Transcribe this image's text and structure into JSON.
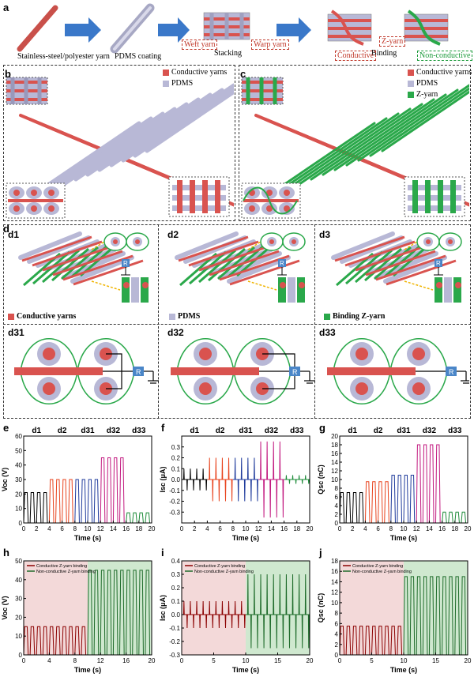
{
  "panel_a": {
    "label": "a",
    "steps": [
      "Stainless-steel/polyester yarn",
      "PDMS coating",
      "Stacking",
      "Binding"
    ],
    "weft_label": "Weft yarn",
    "warp_label": "Warp yarn",
    "z_yarn_label": "Z-yarn",
    "conductive_label": "Conductive",
    "nonconductive_label": "Non-conductive"
  },
  "panel_b": {
    "label": "b",
    "legend": [
      "Conductive yarns",
      "PDMS"
    ]
  },
  "panel_c": {
    "label": "c",
    "legend": [
      "Conductive yarns",
      "PDMS",
      "Z-yarn"
    ]
  },
  "panel_d": {
    "label": "d",
    "subpanels": [
      "d1",
      "d2",
      "d3",
      "d31",
      "d32",
      "d33"
    ],
    "legend": [
      "Conductive yarns",
      "PDMS",
      "Binding Z-yarn"
    ],
    "resistor": "R"
  },
  "colors": {
    "conductive": "#d9534f",
    "pdms": "#b8b8d6",
    "zyarn": "#2aa84a",
    "resistor": "#4a86c8"
  },
  "chart_data": [
    {
      "id": "e",
      "type": "line",
      "ylabel": "Voc (V)",
      "xlabel": "Time (s)",
      "xlim": [
        0,
        20
      ],
      "ylim": [
        0,
        60
      ],
      "xticks": [
        0,
        2,
        4,
        6,
        8,
        10,
        12,
        14,
        16,
        18,
        20
      ],
      "yticks": [
        0,
        10,
        20,
        30,
        40,
        50,
        60
      ],
      "segment_labels": [
        "d1",
        "d2",
        "d31",
        "d32",
        "d33"
      ],
      "series": [
        {
          "segment": "d1",
          "x": [
            0,
            4
          ],
          "peak": 21,
          "base": 0,
          "pulses": 4,
          "color": "#000000"
        },
        {
          "segment": "d2",
          "x": [
            4,
            8
          ],
          "peak": 30,
          "base": 0,
          "pulses": 4,
          "color": "#e8431d"
        },
        {
          "segment": "d31",
          "x": [
            8,
            12
          ],
          "peak": 30,
          "base": 0,
          "pulses": 4,
          "color": "#1f3b9c"
        },
        {
          "segment": "d32",
          "x": [
            12,
            16
          ],
          "peak": 45,
          "base": 0,
          "pulses": 4,
          "color": "#c2187f"
        },
        {
          "segment": "d33",
          "x": [
            16,
            20
          ],
          "peak": 7,
          "base": 0,
          "pulses": 4,
          "color": "#1e8c3a"
        }
      ]
    },
    {
      "id": "f",
      "type": "line",
      "ylabel": "Isc (μA)",
      "xlabel": "Time (s)",
      "xlim": [
        0,
        20
      ],
      "ylim": [
        -0.4,
        0.4
      ],
      "xticks": [
        0,
        2,
        4,
        6,
        8,
        10,
        12,
        14,
        16,
        18,
        20
      ],
      "yticks": [
        -0.3,
        -0.2,
        -0.1,
        0.0,
        0.1,
        0.2,
        0.3
      ],
      "segment_labels": [
        "d1",
        "d2",
        "d31",
        "d32",
        "d33"
      ],
      "series": [
        {
          "segment": "d1",
          "x": [
            0,
            4
          ],
          "peak": 0.1,
          "neg": -0.1,
          "pulses": 4,
          "color": "#000000"
        },
        {
          "segment": "d2",
          "x": [
            4,
            8
          ],
          "peak": 0.2,
          "neg": -0.2,
          "pulses": 4,
          "color": "#e8431d"
        },
        {
          "segment": "d31",
          "x": [
            8,
            12
          ],
          "peak": 0.2,
          "neg": -0.2,
          "pulses": 4,
          "color": "#1f3b9c"
        },
        {
          "segment": "d32",
          "x": [
            12,
            16
          ],
          "peak": 0.35,
          "neg": -0.35,
          "pulses": 4,
          "color": "#c2187f"
        },
        {
          "segment": "d33",
          "x": [
            16,
            20
          ],
          "peak": 0.04,
          "neg": -0.04,
          "pulses": 4,
          "color": "#1e8c3a"
        }
      ]
    },
    {
      "id": "g",
      "type": "line",
      "ylabel": "Qsc (nC)",
      "xlabel": "Time (s)",
      "xlim": [
        0,
        20
      ],
      "ylim": [
        0,
        20
      ],
      "xticks": [
        0,
        2,
        4,
        6,
        8,
        10,
        12,
        14,
        16,
        18,
        20
      ],
      "yticks": [
        0,
        2,
        4,
        6,
        8,
        10,
        12,
        14,
        16,
        18,
        20
      ],
      "segment_labels": [
        "d1",
        "d2",
        "d31",
        "d32",
        "d33"
      ],
      "series": [
        {
          "segment": "d1",
          "x": [
            0,
            4
          ],
          "peak": 7,
          "base": 0,
          "pulses": 4,
          "color": "#000000"
        },
        {
          "segment": "d2",
          "x": [
            4,
            8
          ],
          "peak": 9.5,
          "base": 0,
          "pulses": 4,
          "color": "#e8431d"
        },
        {
          "segment": "d31",
          "x": [
            8,
            12
          ],
          "peak": 11,
          "base": 0,
          "pulses": 4,
          "color": "#1f3b9c"
        },
        {
          "segment": "d32",
          "x": [
            12,
            16
          ],
          "peak": 18,
          "base": 0,
          "pulses": 4,
          "color": "#c2187f"
        },
        {
          "segment": "d33",
          "x": [
            16,
            20
          ],
          "peak": 2.5,
          "base": 0,
          "pulses": 4,
          "color": "#1e8c3a"
        }
      ]
    },
    {
      "id": "h",
      "type": "line",
      "ylabel": "Voc (V)",
      "xlabel": "Time (s)",
      "xlim": [
        0,
        20
      ],
      "ylim": [
        0,
        50
      ],
      "xticks": [
        0,
        4,
        8,
        12,
        16,
        20
      ],
      "yticks": [
        0,
        10,
        20,
        30,
        40,
        50
      ],
      "legend": [
        "Conductive Z-yarn binding",
        "Non-conductive Z-yarn binding"
      ],
      "series": [
        {
          "name": "Conductive Z-yarn binding",
          "x": [
            0,
            10
          ],
          "peak": 15,
          "base": 0,
          "pulses": 10,
          "color": "#8b0000",
          "bg": "#f3d9d9"
        },
        {
          "name": "Non-conductive Z-yarn binding",
          "x": [
            10,
            20
          ],
          "peak": 45,
          "base": 0,
          "pulses": 10,
          "color": "#1e6b2a",
          "bg": "#cfe8cf"
        }
      ]
    },
    {
      "id": "i",
      "type": "line",
      "ylabel": "Isc (μA)",
      "xlabel": "Time (s)",
      "xlim": [
        0,
        20
      ],
      "ylim": [
        -0.3,
        0.4
      ],
      "xticks": [
        0,
        5,
        10,
        15,
        20
      ],
      "yticks": [
        -0.3,
        -0.2,
        -0.1,
        0.0,
        0.1,
        0.2,
        0.3,
        0.4
      ],
      "legend": [
        "Conductive Z-yarn binding",
        "Non-conductive Z-yarn binding"
      ],
      "series": [
        {
          "name": "Conductive Z-yarn binding",
          "x": [
            0,
            10
          ],
          "peak": 0.1,
          "neg": -0.1,
          "pulses": 10,
          "color": "#8b0000",
          "bg": "#f3d9d9"
        },
        {
          "name": "Non-conductive Z-yarn binding",
          "x": [
            10,
            20
          ],
          "peak": 0.3,
          "neg": -0.25,
          "pulses": 10,
          "color": "#1e6b2a",
          "bg": "#cfe8cf"
        }
      ]
    },
    {
      "id": "j",
      "type": "line",
      "ylabel": "Qsc (nC)",
      "xlabel": "Time (s)",
      "xlim": [
        0,
        20
      ],
      "ylim": [
        0,
        18
      ],
      "xticks": [
        0,
        5,
        10,
        15,
        20
      ],
      "yticks": [
        0,
        2,
        4,
        6,
        8,
        10,
        12,
        14,
        16,
        18
      ],
      "legend": [
        "Conductive Z-yarn binding",
        "Non-conductive Z-yarn binding"
      ],
      "series": [
        {
          "name": "Conductive Z-yarn binding",
          "x": [
            0,
            10
          ],
          "peak": 5.5,
          "base": 0,
          "pulses": 10,
          "color": "#8b0000",
          "bg": "#f3d9d9"
        },
        {
          "name": "Non-conductive Z-yarn binding",
          "x": [
            10,
            20
          ],
          "peak": 15,
          "base": 0,
          "pulses": 10,
          "color": "#1e6b2a",
          "bg": "#cfe8cf"
        }
      ]
    }
  ]
}
